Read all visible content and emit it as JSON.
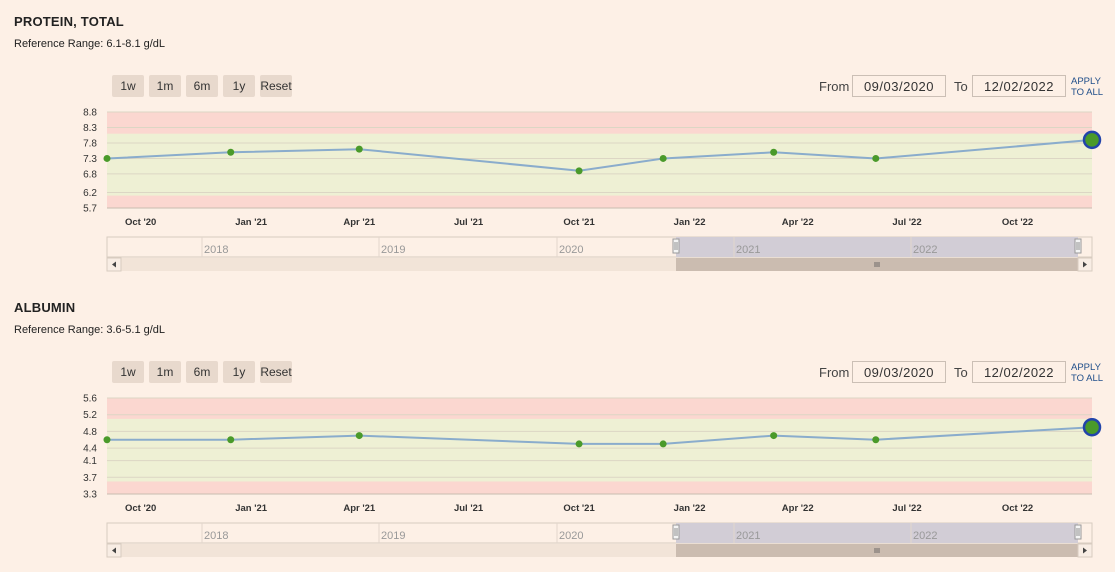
{
  "charts": [
    {
      "title": "PROTEIN, TOTAL",
      "reference_range": "Reference Range: 6.1-8.1 g/dL",
      "zoom_buttons": [
        "1w",
        "1m",
        "6m",
        "1y",
        "Reset"
      ],
      "from_label": "From",
      "from_value": "09/03/2020",
      "to_label": "To",
      "to_value": "12/02/2022",
      "apply_line1": "APPLY",
      "apply_line2": "TO ALL",
      "navigator_years": [
        "2018",
        "2019",
        "2020",
        "2021",
        "2022"
      ],
      "colors": {
        "line": "#8aaccc",
        "point": "#4a9a2a",
        "latest_ring": "#2244aa",
        "normal_band": "#eef0d4",
        "abnormal_band": "#fbd7d0"
      }
    },
    {
      "title": "ALBUMIN",
      "reference_range": "Reference Range: 3.6-5.1 g/dL",
      "zoom_buttons": [
        "1w",
        "1m",
        "6m",
        "1y",
        "Reset"
      ],
      "from_label": "From",
      "from_value": "09/03/2020",
      "to_label": "To",
      "to_value": "12/02/2022",
      "apply_line1": "APPLY",
      "apply_line2": "TO ALL",
      "navigator_years": [
        "2018",
        "2019",
        "2020",
        "2021",
        "2022"
      ],
      "colors": {
        "line": "#8aaccc",
        "point": "#4a9a2a",
        "latest_ring": "#2244aa",
        "normal_band": "#eef0d4",
        "abnormal_band": "#fbd7d0"
      }
    }
  ],
  "chart_data": [
    {
      "type": "line",
      "title": "PROTEIN, TOTAL",
      "x": [
        "2020-09-03",
        "2020-12-15",
        "2021-04-01",
        "2021-10-01",
        "2021-12-10",
        "2022-03-12",
        "2022-06-05",
        "2022-12-02"
      ],
      "values": [
        7.3,
        7.5,
        7.6,
        6.9,
        7.3,
        7.5,
        7.3,
        7.9
      ],
      "xlim": [
        "2020-09-03",
        "2022-12-02"
      ],
      "ylim": [
        5.7,
        8.8
      ],
      "y_ticks": [
        "5.7",
        "6.2",
        "6.8",
        "7.3",
        "7.8",
        "8.3",
        "8.8"
      ],
      "y_tick_values": [
        5.7,
        6.2,
        6.8,
        7.3,
        7.8,
        8.3,
        8.8
      ],
      "x_ticks": [
        "Oct '20",
        "Jan '21",
        "Apr '21",
        "Jul '21",
        "Oct '21",
        "Jan '22",
        "Apr '22",
        "Jul '22",
        "Oct '22"
      ],
      "x_tick_dates": [
        "2020-10-01",
        "2021-01-01",
        "2021-04-01",
        "2021-07-01",
        "2021-10-01",
        "2022-01-01",
        "2022-04-01",
        "2022-07-01",
        "2022-10-01"
      ],
      "reference_low": 6.1,
      "reference_high": 8.1,
      "grid": true,
      "legend": "none"
    },
    {
      "type": "line",
      "title": "ALBUMIN",
      "x": [
        "2020-09-03",
        "2020-12-15",
        "2021-04-01",
        "2021-10-01",
        "2021-12-10",
        "2022-03-12",
        "2022-06-05",
        "2022-12-02"
      ],
      "values": [
        4.6,
        4.6,
        4.7,
        4.5,
        4.5,
        4.7,
        4.6,
        4.9
      ],
      "xlim": [
        "2020-09-03",
        "2022-12-02"
      ],
      "ylim": [
        3.3,
        5.6
      ],
      "y_ticks": [
        "3.3",
        "3.7",
        "4.1",
        "4.4",
        "4.8",
        "5.2",
        "5.6"
      ],
      "y_tick_values": [
        3.3,
        3.7,
        4.1,
        4.4,
        4.8,
        5.2,
        5.6
      ],
      "x_ticks": [
        "Oct '20",
        "Jan '21",
        "Apr '21",
        "Jul '21",
        "Oct '21",
        "Jan '22",
        "Apr '22",
        "Jul '22",
        "Oct '22"
      ],
      "x_tick_dates": [
        "2020-10-01",
        "2021-01-01",
        "2021-04-01",
        "2021-07-01",
        "2021-10-01",
        "2022-01-01",
        "2022-04-01",
        "2022-07-01",
        "2022-10-01"
      ],
      "reference_low": 3.6,
      "reference_high": 5.1,
      "grid": true,
      "legend": "none"
    }
  ]
}
